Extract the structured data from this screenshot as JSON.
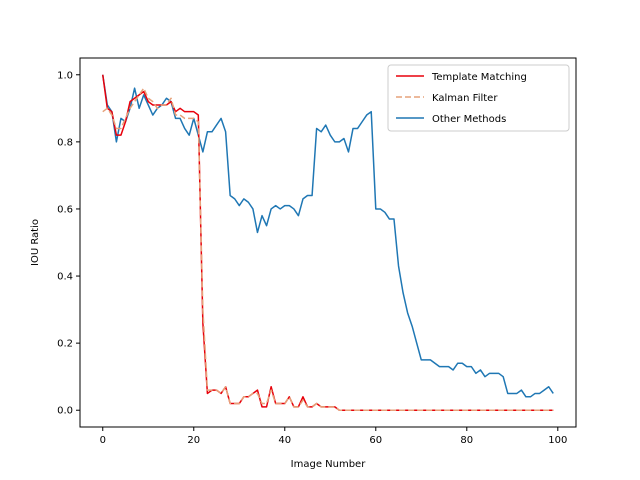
{
  "chart_data": {
    "type": "line",
    "title": "",
    "xlabel": "Image Number",
    "ylabel": "IOU Ratio",
    "xlim": [
      -5,
      104
    ],
    "ylim": [
      -0.05,
      1.05
    ],
    "x_ticks": [
      0,
      20,
      40,
      60,
      80,
      100
    ],
    "y_ticks": [
      0.0,
      0.2,
      0.4,
      0.6,
      0.8,
      1.0
    ],
    "x_tick_labels": [
      "0",
      "20",
      "40",
      "60",
      "80",
      "100"
    ],
    "y_tick_labels": [
      "0.0",
      "0.2",
      "0.4",
      "0.6",
      "0.8",
      "1.0"
    ],
    "grid": false,
    "legend_position": "top-right",
    "series": [
      {
        "name": "Template Matching",
        "color": "#e8000b",
        "style": "solid",
        "values": [
          1.0,
          0.9,
          0.89,
          0.82,
          0.82,
          0.86,
          0.92,
          0.93,
          0.94,
          0.95,
          0.92,
          0.91,
          0.91,
          0.91,
          0.91,
          0.92,
          0.89,
          0.9,
          0.89,
          0.89,
          0.89,
          0.88,
          0.26,
          0.05,
          0.06,
          0.06,
          0.05,
          0.07,
          0.02,
          0.02,
          0.02,
          0.04,
          0.04,
          0.05,
          0.06,
          0.01,
          0.01,
          0.07,
          0.02,
          0.02,
          0.02,
          0.04,
          0.01,
          0.01,
          0.04,
          0.01,
          0.01,
          0.02,
          0.01,
          0.01,
          0.01,
          0.01,
          0.0,
          0.0,
          0.0,
          0.0,
          0.0,
          0.0,
          0.0,
          0.0,
          0.0,
          0.0,
          0.0,
          0.0,
          0.0,
          0.0,
          0.0,
          0.0,
          0.0,
          0.0,
          0.0,
          0.0,
          0.0,
          0.0,
          0.0,
          0.0,
          0.0,
          0.0,
          0.0,
          0.0,
          0.0,
          0.0,
          0.0,
          0.0,
          0.0,
          0.0,
          0.0,
          0.0,
          0.0,
          0.0,
          0.0,
          0.0,
          0.0,
          0.0,
          0.0,
          0.0,
          0.0,
          0.0,
          0.0,
          0.0
        ]
      },
      {
        "name": "Kalman Filter",
        "color": "#e6a27a",
        "style": "dashed",
        "values": [
          0.89,
          0.9,
          0.88,
          0.84,
          0.84,
          0.87,
          0.9,
          0.92,
          0.94,
          0.96,
          0.93,
          0.92,
          0.9,
          0.91,
          0.91,
          0.93,
          0.88,
          0.88,
          0.87,
          0.87,
          0.87,
          0.86,
          0.3,
          0.06,
          0.06,
          0.06,
          0.05,
          0.07,
          0.02,
          0.02,
          0.02,
          0.04,
          0.04,
          0.05,
          0.05,
          0.02,
          0.02,
          0.06,
          0.02,
          0.02,
          0.02,
          0.04,
          0.01,
          0.01,
          0.03,
          0.01,
          0.01,
          0.02,
          0.01,
          0.01,
          0.01,
          0.01,
          0.0,
          0.0,
          0.0,
          0.0,
          0.0,
          0.0,
          0.0,
          0.0,
          0.0,
          0.0,
          0.0,
          0.0,
          0.0,
          0.0,
          0.0,
          0.0,
          0.0,
          0.0,
          0.0,
          0.0,
          0.0,
          0.0,
          0.0,
          0.0,
          0.0,
          0.0,
          0.0,
          0.0,
          0.0,
          0.0,
          0.0,
          0.0,
          0.0,
          0.0,
          0.0,
          0.0,
          0.0,
          0.0,
          0.0,
          0.0,
          0.0,
          0.0,
          0.0,
          0.0,
          0.0,
          0.0,
          0.0,
          0.0
        ]
      },
      {
        "name": "Other Methods",
        "color": "#1f77b4",
        "style": "solid",
        "values": [
          1.0,
          0.91,
          0.89,
          0.8,
          0.87,
          0.86,
          0.9,
          0.96,
          0.9,
          0.94,
          0.91,
          0.88,
          0.9,
          0.91,
          0.93,
          0.92,
          0.87,
          0.87,
          0.84,
          0.82,
          0.87,
          0.82,
          0.77,
          0.83,
          0.83,
          0.85,
          0.87,
          0.83,
          0.64,
          0.63,
          0.61,
          0.63,
          0.62,
          0.6,
          0.53,
          0.58,
          0.55,
          0.6,
          0.61,
          0.6,
          0.61,
          0.61,
          0.6,
          0.58,
          0.63,
          0.64,
          0.64,
          0.84,
          0.83,
          0.85,
          0.82,
          0.8,
          0.8,
          0.81,
          0.77,
          0.84,
          0.84,
          0.86,
          0.88,
          0.89,
          0.6,
          0.6,
          0.59,
          0.57,
          0.57,
          0.43,
          0.35,
          0.29,
          0.25,
          0.2,
          0.15,
          0.15,
          0.15,
          0.14,
          0.13,
          0.13,
          0.13,
          0.12,
          0.14,
          0.14,
          0.13,
          0.13,
          0.11,
          0.12,
          0.1,
          0.11,
          0.11,
          0.11,
          0.1,
          0.05,
          0.05,
          0.05,
          0.06,
          0.04,
          0.04,
          0.05,
          0.05,
          0.06,
          0.07,
          0.05
        ]
      }
    ]
  }
}
